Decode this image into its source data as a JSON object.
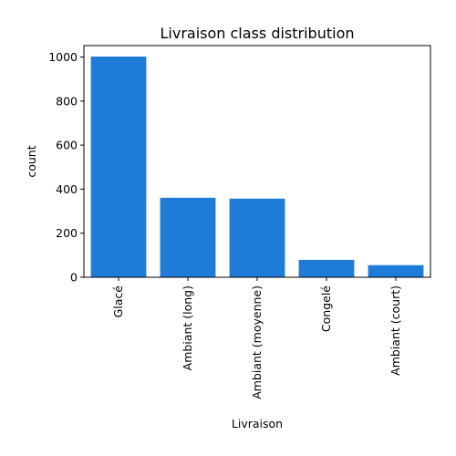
{
  "chart_data": {
    "type": "bar",
    "title": "Livraison class distribution",
    "xlabel": "Livraison",
    "ylabel": "count",
    "categories": [
      "Glacé",
      "Ambiant (long)",
      "Ambiant (moyenne)",
      "Congelé",
      "Ambiant (court)"
    ],
    "values": [
      1002,
      361,
      357,
      79,
      55
    ],
    "ylim": [
      0,
      1052
    ],
    "yticks": [
      0,
      200,
      400,
      600,
      800,
      1000
    ],
    "bar_color": "#1f7bd8",
    "grid": false,
    "legend": "none"
  }
}
